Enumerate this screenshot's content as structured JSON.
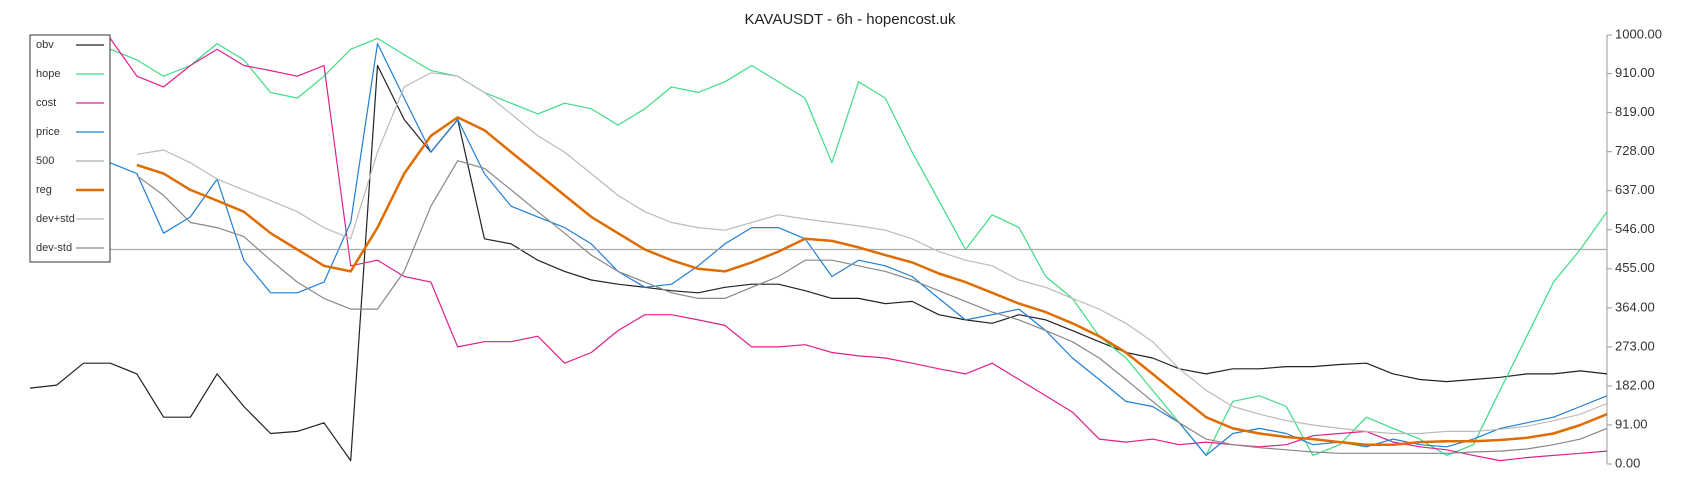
{
  "chart_data": {
    "type": "line",
    "title": "KAVAUSDT - 6h - hopencost.uk",
    "ylim": [
      0,
      1000
    ],
    "yticks": [
      {
        "value": 0,
        "label": "0.00"
      },
      {
        "value": 91,
        "label": "91.00"
      },
      {
        "value": 182,
        "label": "182.00"
      },
      {
        "value": 273,
        "label": "273.00"
      },
      {
        "value": 364,
        "label": "364.00"
      },
      {
        "value": 455,
        "label": "455.00"
      },
      {
        "value": 546,
        "label": "546.00"
      },
      {
        "value": 637,
        "label": "637.00"
      },
      {
        "value": 728,
        "label": "728.00"
      },
      {
        "value": 819,
        "label": "819.00"
      },
      {
        "value": 910,
        "label": "910.00"
      },
      {
        "value": 1000,
        "label": "1000.00"
      }
    ],
    "legend": "upper left",
    "series": [
      {
        "name": "obv",
        "color": "#222222",
        "values": [
          177,
          184,
          235,
          235,
          210,
          109,
          109,
          210,
          134,
          71,
          76,
          96,
          8,
          929,
          803,
          727,
          803,
          525,
          513,
          475,
          449,
          429,
          419,
          412,
          404,
          399,
          412,
          419,
          419,
          404,
          386,
          386,
          374,
          379,
          348,
          336,
          328,
          348,
          336,
          311,
          285,
          260,
          247,
          222,
          210,
          222,
          222,
          227,
          227,
          232,
          235,
          210,
          197,
          192,
          197,
          202,
          210,
          210,
          217,
          210
        ]
      },
      {
        "name": "hope",
        "color": "#3ddc84",
        "values": [
          null,
          null,
          null,
          967,
          942,
          904,
          929,
          980,
          942,
          866,
          853,
          904,
          967,
          992,
          954,
          917,
          904,
          866,
          841,
          816,
          841,
          828,
          790,
          828,
          879,
          866,
          891,
          929,
          891,
          853,
          702,
          891,
          853,
          727,
          614,
          500,
          581,
          551,
          437,
          386,
          298,
          247,
          172,
          96,
          20,
          146,
          159,
          134,
          20,
          45,
          109,
          83,
          58,
          20,
          45,
          172,
          298,
          424,
          500,
          588
        ]
      },
      {
        "name": "cost",
        "color": "#e0218a",
        "values": [
          null,
          null,
          null,
          992,
          904,
          879,
          929,
          967,
          929,
          917,
          904,
          929,
          462,
          475,
          437,
          424,
          273,
          285,
          285,
          298,
          235,
          260,
          311,
          348,
          348,
          336,
          323,
          273,
          273,
          278,
          260,
          252,
          247,
          235,
          222,
          210,
          235,
          197,
          159,
          121,
          58,
          51,
          58,
          45,
          51,
          45,
          40,
          45,
          66,
          71,
          76,
          51,
          40,
          33,
          20,
          8,
          15,
          20,
          25,
          30
        ]
      },
      {
        "name": "price",
        "color": "#1f7fd6",
        "values": [
          null,
          null,
          null,
          702,
          677,
          538,
          576,
          664,
          475,
          399,
          399,
          424,
          563,
          980,
          853,
          727,
          803,
          677,
          601,
          576,
          551,
          513,
          449,
          412,
          419,
          462,
          513,
          551,
          551,
          525,
          437,
          475,
          462,
          437,
          386,
          336,
          348,
          361,
          311,
          247,
          197,
          146,
          134,
          96,
          20,
          71,
          83,
          71,
          45,
          51,
          40,
          58,
          45,
          40,
          58,
          83,
          96,
          109,
          134,
          159
        ]
      },
      {
        "name": "500",
        "color": "#aaaaaa",
        "values": [
          500,
          500,
          500,
          500,
          500,
          500,
          500,
          500,
          500,
          500,
          500,
          500,
          500,
          500,
          500,
          500,
          500,
          500,
          500,
          500,
          500,
          500,
          500,
          500,
          500,
          500,
          500,
          500,
          500,
          500,
          500,
          500,
          500,
          500,
          500,
          500,
          500,
          500,
          500,
          500,
          500,
          500,
          500,
          500,
          500,
          500,
          500,
          500,
          500,
          500,
          500,
          500,
          500,
          500,
          500,
          500,
          500,
          500,
          500,
          500
        ]
      },
      {
        "name": "reg",
        "color": "#e06c00",
        "values": [
          null,
          null,
          null,
          null,
          697,
          677,
          639,
          614,
          588,
          538,
          500,
          462,
          449,
          551,
          677,
          765,
          808,
          778,
          727,
          677,
          626,
          576,
          538,
          500,
          475,
          455,
          449,
          470,
          495,
          525,
          520,
          505,
          487,
          470,
          444,
          424,
          399,
          374,
          354,
          328,
          298,
          260,
          210,
          159,
          109,
          83,
          71,
          63,
          58,
          51,
          45,
          45,
          51,
          53,
          53,
          56,
          61,
          71,
          91,
          116
        ]
      },
      {
        "name": "dev+std",
        "color": "#bbbbbb",
        "values": [
          null,
          null,
          null,
          null,
          722,
          732,
          702,
          664,
          639,
          614,
          588,
          551,
          525,
          727,
          879,
          912,
          904,
          866,
          816,
          765,
          727,
          677,
          626,
          588,
          563,
          551,
          545,
          563,
          581,
          571,
          563,
          555,
          545,
          525,
          495,
          475,
          462,
          429,
          412,
          386,
          361,
          328,
          285,
          222,
          172,
          134,
          116,
          101,
          91,
          83,
          76,
          71,
          71,
          76,
          76,
          81,
          88,
          101,
          116,
          141
        ]
      },
      {
        "name": "dev-std",
        "color": "#888888",
        "values": [
          null,
          null,
          null,
          null,
          672,
          626,
          563,
          551,
          530,
          475,
          424,
          386,
          361,
          361,
          449,
          601,
          707,
          689,
          639,
          588,
          538,
          487,
          449,
          424,
          399,
          386,
          386,
          412,
          437,
          475,
          475,
          462,
          449,
          429,
          404,
          379,
          354,
          336,
          311,
          285,
          247,
          197,
          146,
          96,
          58,
          45,
          38,
          33,
          28,
          25,
          25,
          25,
          25,
          25,
          28,
          30,
          35,
          45,
          58,
          83
        ]
      }
    ]
  }
}
